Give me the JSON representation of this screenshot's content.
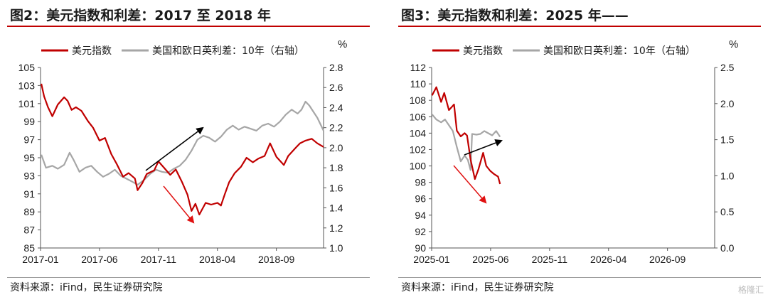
{
  "watermark": "格隆汇",
  "colors": {
    "dxy": "#c00000",
    "spread": "#a6a6a6",
    "title_rule": "#c00000",
    "arrow_up": "#000000",
    "arrow_down": "#e01010"
  },
  "chart_data": [
    {
      "type": "line",
      "title": "图2：美元指数和利差：2017 至 2018 年",
      "source": "资料来源：iFind，民生证券研究院",
      "y2_unit": "%",
      "legend_position": "top",
      "grid": false,
      "y_left": {
        "lim": [
          85,
          105
        ],
        "ticks": [
          "85",
          "87",
          "89",
          "91",
          "93",
          "95",
          "97",
          "99",
          "101",
          "103",
          "105"
        ]
      },
      "y_right": {
        "lim": [
          1.0,
          2.8
        ],
        "ticks": [
          "1.0",
          "1.2",
          "1.4",
          "1.6",
          "1.8",
          "2.0",
          "2.2",
          "2.4",
          "2.6",
          "2.8"
        ]
      },
      "x_range": [
        "2017-01",
        "2018-12"
      ],
      "x_ticks": [
        "2017-01",
        "2017-06",
        "2017-11",
        "2018-04",
        "2018-09"
      ],
      "series": [
        {
          "name": "美元指数",
          "axis": "left",
          "color": "#c00000",
          "points": [
            [
              "2017-01-03",
              103.2
            ],
            [
              "2017-01-10",
              101.8
            ],
            [
              "2017-01-20",
              100.6
            ],
            [
              "2017-02-01",
              99.6
            ],
            [
              "2017-02-15",
              100.9
            ],
            [
              "2017-03-01",
              101.7
            ],
            [
              "2017-03-10",
              101.3
            ],
            [
              "2017-03-20",
              100.3
            ],
            [
              "2017-04-01",
              100.6
            ],
            [
              "2017-04-15",
              100.2
            ],
            [
              "2017-05-01",
              99.1
            ],
            [
              "2017-05-15",
              98.3
            ],
            [
              "2017-06-01",
              96.9
            ],
            [
              "2017-06-15",
              97.2
            ],
            [
              "2017-07-01",
              95.4
            ],
            [
              "2017-07-15",
              94.3
            ],
            [
              "2017-08-01",
              92.9
            ],
            [
              "2017-08-15",
              93.3
            ],
            [
              "2017-09-01",
              92.7
            ],
            [
              "2017-09-08",
              91.4
            ],
            [
              "2017-09-20",
              92.2
            ],
            [
              "2017-10-01",
              93.2
            ],
            [
              "2017-10-20",
              93.6
            ],
            [
              "2017-11-01",
              94.6
            ],
            [
              "2017-11-15",
              93.9
            ],
            [
              "2017-12-01",
              93.1
            ],
            [
              "2017-12-15",
              93.7
            ],
            [
              "2018-01-01",
              92.3
            ],
            [
              "2018-01-15",
              90.9
            ],
            [
              "2018-01-25",
              89.1
            ],
            [
              "2018-02-05",
              89.9
            ],
            [
              "2018-02-15",
              88.7
            ],
            [
              "2018-03-01",
              90.0
            ],
            [
              "2018-03-15",
              89.8
            ],
            [
              "2018-04-01",
              90.0
            ],
            [
              "2018-04-10",
              89.7
            ],
            [
              "2018-04-20",
              91.0
            ],
            [
              "2018-05-01",
              92.3
            ],
            [
              "2018-05-15",
              93.3
            ],
            [
              "2018-06-01",
              94.0
            ],
            [
              "2018-06-15",
              95.0
            ],
            [
              "2018-07-01",
              94.5
            ],
            [
              "2018-07-15",
              94.9
            ],
            [
              "2018-08-01",
              95.2
            ],
            [
              "2018-08-15",
              96.6
            ],
            [
              "2018-09-01",
              95.1
            ],
            [
              "2018-09-20",
              94.2
            ],
            [
              "2018-10-01",
              95.2
            ],
            [
              "2018-10-20",
              96.1
            ],
            [
              "2018-11-01",
              96.6
            ],
            [
              "2018-11-15",
              96.9
            ],
            [
              "2018-12-01",
              97.1
            ],
            [
              "2018-12-15",
              96.6
            ],
            [
              "2018-12-31",
              96.2
            ]
          ]
        },
        {
          "name": "美国和欧日英利差：10年（右轴）",
          "axis": "right",
          "color": "#a6a6a6",
          "points": [
            [
              "2017-01-03",
              1.93
            ],
            [
              "2017-01-15",
              1.8
            ],
            [
              "2017-02-01",
              1.82
            ],
            [
              "2017-02-15",
              1.79
            ],
            [
              "2017-03-01",
              1.83
            ],
            [
              "2017-03-15",
              1.95
            ],
            [
              "2017-03-25",
              1.88
            ],
            [
              "2017-04-10",
              1.76
            ],
            [
              "2017-04-25",
              1.8
            ],
            [
              "2017-05-10",
              1.82
            ],
            [
              "2017-05-25",
              1.76
            ],
            [
              "2017-06-10",
              1.71
            ],
            [
              "2017-06-25",
              1.74
            ],
            [
              "2017-07-10",
              1.78
            ],
            [
              "2017-07-25",
              1.72
            ],
            [
              "2017-08-10",
              1.69
            ],
            [
              "2017-08-25",
              1.66
            ],
            [
              "2017-09-08",
              1.63
            ],
            [
              "2017-09-25",
              1.68
            ],
            [
              "2017-10-10",
              1.74
            ],
            [
              "2017-10-25",
              1.78
            ],
            [
              "2017-11-10",
              1.76
            ],
            [
              "2017-11-25",
              1.75
            ],
            [
              "2017-12-10",
              1.79
            ],
            [
              "2017-12-25",
              1.82
            ],
            [
              "2018-01-10",
              1.88
            ],
            [
              "2018-01-25",
              1.97
            ],
            [
              "2018-02-10",
              2.08
            ],
            [
              "2018-02-25",
              2.12
            ],
            [
              "2018-03-10",
              2.1
            ],
            [
              "2018-03-25",
              2.06
            ],
            [
              "2018-04-10",
              2.11
            ],
            [
              "2018-04-25",
              2.18
            ],
            [
              "2018-05-10",
              2.22
            ],
            [
              "2018-05-25",
              2.18
            ],
            [
              "2018-06-10",
              2.21
            ],
            [
              "2018-06-25",
              2.19
            ],
            [
              "2018-07-10",
              2.17
            ],
            [
              "2018-07-25",
              2.22
            ],
            [
              "2018-08-10",
              2.24
            ],
            [
              "2018-08-25",
              2.21
            ],
            [
              "2018-09-10",
              2.26
            ],
            [
              "2018-09-25",
              2.33
            ],
            [
              "2018-10-10",
              2.38
            ],
            [
              "2018-10-25",
              2.34
            ],
            [
              "2018-11-05",
              2.38
            ],
            [
              "2018-11-15",
              2.46
            ],
            [
              "2018-11-25",
              2.42
            ],
            [
              "2018-12-05",
              2.36
            ],
            [
              "2018-12-15",
              2.3
            ],
            [
              "2018-12-31",
              2.17
            ]
          ]
        }
      ]
    },
    {
      "type": "line",
      "title": "图3：美元指数和利差：2025 年——",
      "source": "资料来源：iFind，民生证券研究院",
      "y2_unit": "%",
      "legend_position": "top",
      "grid": false,
      "y_left": {
        "lim": [
          90,
          112
        ],
        "ticks": [
          "90",
          "92",
          "94",
          "96",
          "98",
          "100",
          "102",
          "104",
          "106",
          "108",
          "110",
          "112"
        ]
      },
      "y_right": {
        "lim": [
          0.0,
          2.5
        ],
        "ticks": [
          "0.0",
          "0.5",
          "1.0",
          "1.5",
          "2.0",
          "2.5"
        ]
      },
      "x_range": [
        "2025-01",
        "2026-12"
      ],
      "x_ticks": [
        "2025-01",
        "2025-06",
        "2025-11",
        "2026-04",
        "2026-09"
      ],
      "series": [
        {
          "name": "美元指数",
          "axis": "left",
          "color": "#c00000",
          "points": [
            [
              "2025-01-02",
              108.6
            ],
            [
              "2025-01-13",
              109.6
            ],
            [
              "2025-01-25",
              107.8
            ],
            [
              "2025-02-03",
              108.9
            ],
            [
              "2025-02-15",
              106.8
            ],
            [
              "2025-02-28",
              107.5
            ],
            [
              "2025-03-05",
              104.3
            ],
            [
              "2025-03-15",
              103.6
            ],
            [
              "2025-03-25",
              104.0
            ],
            [
              "2025-04-01",
              103.7
            ],
            [
              "2025-04-10",
              100.8
            ],
            [
              "2025-04-21",
              98.4
            ],
            [
              "2025-04-30",
              99.6
            ],
            [
              "2025-05-12",
              101.6
            ],
            [
              "2025-05-20",
              100.0
            ],
            [
              "2025-05-30",
              99.4
            ],
            [
              "2025-06-10",
              99.0
            ],
            [
              "2025-06-20",
              98.7
            ],
            [
              "2025-06-25",
              97.8
            ]
          ]
        },
        {
          "name": "美国和欧日英利差：10年（右轴）",
          "axis": "right",
          "color": "#a6a6a6",
          "points": [
            [
              "2025-01-02",
              1.85
            ],
            [
              "2025-01-13",
              1.78
            ],
            [
              "2025-01-25",
              1.74
            ],
            [
              "2025-02-05",
              1.78
            ],
            [
              "2025-02-15",
              1.7
            ],
            [
              "2025-02-25",
              1.62
            ],
            [
              "2025-03-05",
              1.4
            ],
            [
              "2025-03-15",
              1.2
            ],
            [
              "2025-03-25",
              1.28
            ],
            [
              "2025-04-03",
              1.22
            ],
            [
              "2025-04-10",
              1.08
            ],
            [
              "2025-04-14",
              1.58
            ],
            [
              "2025-04-25",
              1.57
            ],
            [
              "2025-05-05",
              1.58
            ],
            [
              "2025-05-15",
              1.62
            ],
            [
              "2025-05-25",
              1.59
            ],
            [
              "2025-06-05",
              1.56
            ],
            [
              "2025-06-15",
              1.62
            ],
            [
              "2025-06-25",
              1.54
            ]
          ]
        }
      ]
    }
  ]
}
